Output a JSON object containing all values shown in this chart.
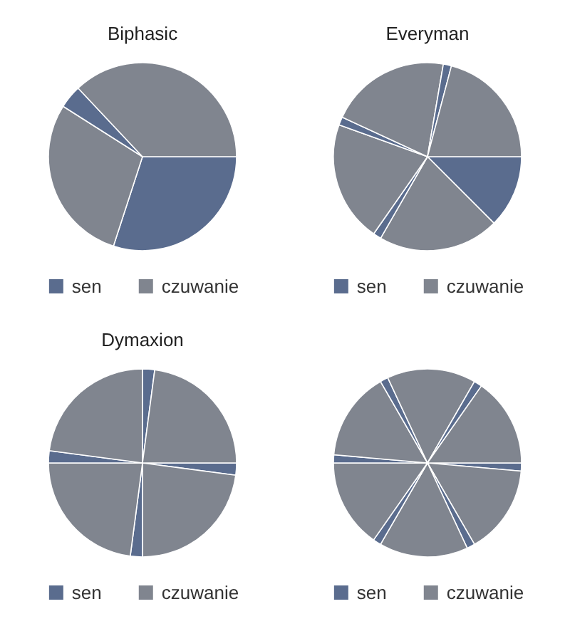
{
  "chart_data": [
    {
      "type": "pie",
      "title": "Biphasic",
      "categories": [
        "sen",
        "czuwanie",
        null,
        null
      ],
      "values": [
        30,
        29,
        4,
        37
      ],
      "colors": [
        "#5a6c8e",
        "#80858f",
        "#5a6c8e",
        "#80858f"
      ],
      "legend": "bottom"
    },
    {
      "type": "pie",
      "title": "Everyman",
      "categories": [
        "sen",
        "czuwanie",
        null,
        null,
        null,
        null,
        null,
        null
      ],
      "values": [
        12.5,
        20.8,
        1.4,
        20.8,
        1.4,
        20.8,
        1.4,
        20.9
      ],
      "colors": [
        "#5a6c8e",
        "#80858f",
        "#5a6c8e",
        "#80858f",
        "#5a6c8e",
        "#80858f",
        "#5a6c8e",
        "#80858f"
      ],
      "legend": "bottom"
    },
    {
      "type": "pie",
      "title": "Dymaxion",
      "categories": [
        "sen",
        "czuwanie",
        null,
        null,
        null,
        null,
        null,
        null
      ],
      "values": [
        2.08,
        22.92,
        2.08,
        22.92,
        2.08,
        22.92,
        2.08,
        22.92
      ],
      "colors": [
        "#5a6c8e",
        "#80858f",
        "#5a6c8e",
        "#80858f",
        "#5a6c8e",
        "#80858f",
        "#5a6c8e",
        "#80858f"
      ],
      "legend": "bottom"
    },
    {
      "type": "pie",
      "categories": [
        "sen",
        "czuwanie",
        null,
        null,
        null,
        null,
        null,
        null,
        null,
        null,
        null,
        null
      ],
      "values": [
        1.39,
        15.28,
        1.39,
        15.28,
        1.39,
        15.28,
        1.39,
        15.28,
        1.39,
        15.28,
        1.39,
        15.28
      ],
      "colors": [
        "#5a6c8e",
        "#80858f",
        "#5a6c8e",
        "#80858f",
        "#5a6c8e",
        "#80858f",
        "#5a6c8e",
        "#80858f",
        "#5a6c8e",
        "#80858f",
        "#5a6c8e",
        "#80858f"
      ],
      "legend": "bottom"
    }
  ]
}
